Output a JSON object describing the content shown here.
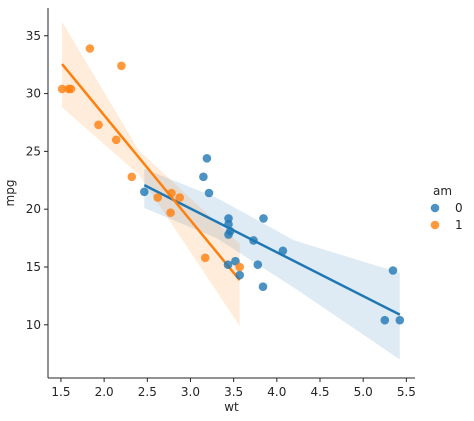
{
  "chart_data": {
    "type": "scatter",
    "xlabel": "wt",
    "ylabel": "mpg",
    "xlim": [
      1.35,
      5.6
    ],
    "ylim": [
      5.4,
      37.4
    ],
    "x_ticks": [
      1.5,
      2.0,
      2.5,
      3.0,
      3.5,
      4.0,
      4.5,
      5.0,
      5.5
    ],
    "x_tick_labels": [
      "1.5",
      "2.0",
      "2.5",
      "3.0",
      "3.5",
      "4.0",
      "4.5",
      "5.0",
      "5.5"
    ],
    "y_ticks": [
      10,
      15,
      20,
      25,
      30,
      35
    ],
    "y_tick_labels": [
      "10",
      "15",
      "20",
      "25",
      "30",
      "35"
    ],
    "grid": false,
    "legend": {
      "title": "am",
      "placement": "right",
      "entries": [
        {
          "label": "0",
          "color": "#1f77b4"
        },
        {
          "label": "1",
          "color": "#ff7f0e"
        }
      ]
    },
    "series": [
      {
        "name": "0",
        "color": "#1f77b4",
        "points": [
          [
            2.465,
            21.5
          ],
          [
            3.215,
            21.4
          ],
          [
            3.44,
            18.7
          ],
          [
            3.46,
            18.1
          ],
          [
            3.57,
            14.3
          ],
          [
            3.19,
            24.4
          ],
          [
            3.15,
            22.8
          ],
          [
            3.44,
            19.2
          ],
          [
            3.44,
            17.8
          ],
          [
            4.07,
            16.4
          ],
          [
            3.73,
            17.3
          ],
          [
            3.78,
            15.2
          ],
          [
            5.25,
            10.4
          ],
          [
            5.424,
            10.4
          ],
          [
            5.345,
            14.7
          ],
          [
            3.52,
            15.5
          ],
          [
            3.435,
            15.2
          ],
          [
            3.84,
            13.3
          ],
          [
            3.845,
            19.2
          ]
        ],
        "fit": {
          "slope": -3.786,
          "intercept": 31.416,
          "x_range": [
            2.465,
            5.424
          ]
        },
        "band": {
          "x": [
            2.465,
            3.3,
            4.2,
            5.424
          ],
          "lower": [
            20.1,
            17.5,
            13.2,
            7.0
          ],
          "upper": [
            23.5,
            21.0,
            17.3,
            14.5
          ]
        }
      },
      {
        "name": "1",
        "color": "#ff7f0e",
        "points": [
          [
            2.62,
            21.0
          ],
          [
            2.875,
            21.0
          ],
          [
            2.32,
            22.8
          ],
          [
            2.2,
            32.4
          ],
          [
            1.615,
            30.4
          ],
          [
            1.835,
            33.9
          ],
          [
            1.935,
            27.3
          ],
          [
            2.14,
            26.0
          ],
          [
            1.513,
            30.4
          ],
          [
            3.17,
            15.8
          ],
          [
            2.77,
            19.7
          ],
          [
            2.78,
            21.4
          ],
          [
            1.59,
            30.4
          ],
          [
            3.57,
            15.0
          ]
        ],
        "fit": {
          "slope": -9.084,
          "intercept": 46.294,
          "x_range": [
            1.513,
            3.57
          ]
        },
        "band": {
          "x": [
            1.513,
            2.4,
            3.57
          ],
          "lower": [
            28.8,
            23.0,
            9.9
          ],
          "upper": [
            36.2,
            25.1,
            17.0
          ]
        }
      }
    ]
  }
}
